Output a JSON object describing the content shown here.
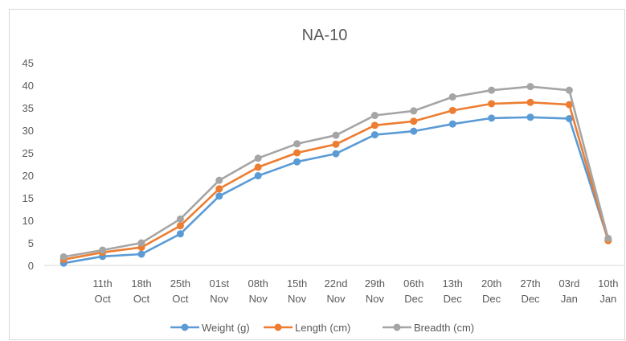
{
  "chart_data": {
    "type": "line",
    "title": "NA-10",
    "categories": [
      [
        "",
        ""
      ],
      [
        "11th",
        "Oct"
      ],
      [
        "18th",
        "Oct"
      ],
      [
        "25th",
        "Oct"
      ],
      [
        "01st",
        "Nov"
      ],
      [
        "08th",
        "Nov"
      ],
      [
        "15th",
        "Nov"
      ],
      [
        "22nd",
        "Nov"
      ],
      [
        "29th",
        "Nov"
      ],
      [
        "06th",
        "Dec"
      ],
      [
        "13th",
        "Dec"
      ],
      [
        "20th",
        "Dec"
      ],
      [
        "27th",
        "Dec"
      ],
      [
        "03rd",
        "Jan"
      ],
      [
        "10th",
        "Jan"
      ]
    ],
    "ylim": [
      0,
      45
    ],
    "yticks": [
      0,
      5,
      10,
      15,
      20,
      25,
      30,
      35,
      40,
      45
    ],
    "grid": false,
    "legend_position": "bottom",
    "series": [
      {
        "name": "Weight (g)",
        "color": "#5B9BD5",
        "values": [
          0.5,
          2.0,
          2.5,
          7.0,
          15.4,
          19.9,
          23.0,
          24.8,
          29.0,
          29.8,
          31.4,
          32.7,
          32.9,
          32.6,
          5.6
        ]
      },
      {
        "name": "Length (cm)",
        "color": "#ED7D31",
        "values": [
          1.3,
          2.9,
          4.0,
          8.8,
          17.0,
          21.8,
          25.0,
          26.9,
          31.1,
          32.0,
          34.4,
          35.9,
          36.2,
          35.7,
          5.5
        ]
      },
      {
        "name": "Breadth  (cm)",
        "color": "#A5A5A5",
        "values": [
          1.9,
          3.4,
          5.0,
          10.3,
          18.9,
          23.8,
          27.0,
          28.9,
          33.3,
          34.3,
          37.4,
          38.9,
          39.7,
          38.9,
          6.0
        ]
      }
    ]
  }
}
